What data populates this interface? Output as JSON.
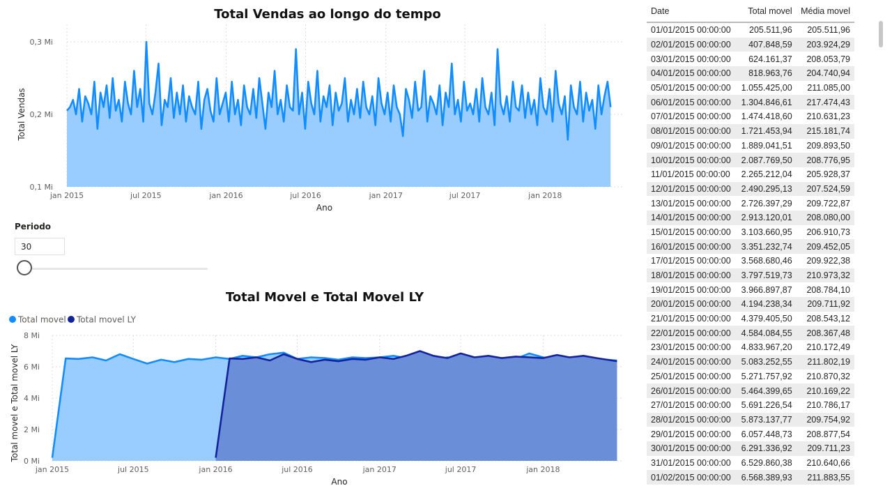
{
  "chart_data": [
    {
      "type": "area",
      "title": "Total Vendas ao longo do tempo",
      "xlabel": "Ano",
      "ylabel": "Total Vendas",
      "x_ticks": [
        "jan 2015",
        "jul 2015",
        "jan 2016",
        "jul 2016",
        "jan 2017",
        "jul 2017",
        "jan 2018"
      ],
      "y_ticks": [
        "0,1 Mi",
        "0,2 Mi",
        "0,3 Mi"
      ],
      "ylim": [
        0.1,
        0.3
      ],
      "xlim": [
        "2015-01-01",
        "2018-06-30"
      ],
      "grid": true,
      "series": [
        {
          "x_start": "2015-01-01",
          "step_weeks": 1,
          "values": [
            0.205,
            0.21,
            0.22,
            0.2,
            0.235,
            0.19,
            0.225,
            0.215,
            0.2,
            0.245,
            0.18,
            0.23,
            0.21,
            0.24,
            0.195,
            0.25,
            0.205,
            0.22,
            0.19,
            0.245,
            0.215,
            0.2,
            0.26,
            0.21,
            0.235,
            0.19,
            0.3,
            0.215,
            0.2,
            0.23,
            0.27,
            0.185,
            0.22,
            0.21,
            0.25,
            0.195,
            0.23,
            0.2,
            0.24,
            0.19,
            0.225,
            0.21,
            0.2,
            0.245,
            0.18,
            0.22,
            0.235,
            0.205,
            0.19,
            0.25,
            0.2,
            0.215,
            0.23,
            0.19,
            0.245,
            0.2,
            0.22,
            0.185,
            0.24,
            0.21,
            0.2,
            0.235,
            0.195,
            0.25,
            0.215,
            0.18,
            0.23,
            0.21,
            0.26,
            0.2,
            0.22,
            0.19,
            0.24,
            0.21,
            0.205,
            0.29,
            0.2,
            0.23,
            0.18,
            0.245,
            0.215,
            0.2,
            0.26,
            0.19,
            0.225,
            0.21,
            0.24,
            0.185,
            0.23,
            0.205,
            0.215,
            0.25,
            0.19,
            0.22,
            0.2,
            0.235,
            0.195,
            0.245,
            0.21,
            0.2,
            0.225,
            0.185,
            0.25,
            0.215,
            0.2,
            0.23,
            0.19,
            0.24,
            0.21,
            0.2,
            0.17,
            0.235,
            0.22,
            0.195,
            0.245,
            0.205,
            0.21,
            0.26,
            0.19,
            0.225,
            0.215,
            0.2,
            0.24,
            0.185,
            0.23,
            0.21,
            0.27,
            0.2,
            0.22,
            0.19,
            0.245,
            0.205,
            0.215,
            0.2,
            0.235,
            0.19,
            0.25,
            0.21,
            0.2,
            0.23,
            0.185,
            0.29,
            0.215,
            0.2,
            0.225,
            0.19,
            0.245,
            0.21,
            0.205,
            0.24,
            0.195,
            0.23,
            0.2,
            0.22,
            0.185,
            0.25,
            0.21,
            0.2,
            0.235,
            0.19,
            0.26,
            0.215,
            0.2,
            0.225,
            0.165,
            0.24,
            0.21,
            0.2,
            0.245,
            0.19,
            0.23,
            0.205,
            0.22,
            0.18,
            0.24,
            0.2,
            0.225,
            0.245,
            0.21
          ]
        }
      ]
    },
    {
      "type": "area",
      "title": "Total Movel e Total Movel LY",
      "xlabel": "Ano",
      "ylabel": "Total movel e Total movel LY",
      "legend_position": "top-left",
      "x_ticks": [
        "jan 2015",
        "jul 2015",
        "jan 2016",
        "jul 2016",
        "jan 2017",
        "jul 2017",
        "jan 2018"
      ],
      "y_ticks": [
        "0 Mi",
        "2 Mi",
        "4 Mi",
        "6 Mi",
        "8 Mi"
      ],
      "ylim": [
        0,
        8
      ],
      "xlim": [
        "2015-01-01",
        "2018-06-30"
      ],
      "grid": true,
      "series": [
        {
          "name": "Total movel",
          "color": "#118dff",
          "fill": "#99ccff",
          "points": [
            [
              "2015-01-01",
              0.2
            ],
            [
              "2015-01-31",
              6.53
            ],
            [
              "2015-02-28",
              6.5
            ],
            [
              "2015-04-01",
              6.6
            ],
            [
              "2015-05-01",
              6.4
            ],
            [
              "2015-06-01",
              6.8
            ],
            [
              "2015-07-01",
              6.5
            ],
            [
              "2015-08-01",
              6.2
            ],
            [
              "2015-09-01",
              6.45
            ],
            [
              "2015-10-01",
              6.3
            ],
            [
              "2015-11-01",
              6.5
            ],
            [
              "2015-12-01",
              6.45
            ],
            [
              "2016-01-01",
              6.6
            ],
            [
              "2016-02-01",
              6.5
            ],
            [
              "2016-03-01",
              6.7
            ],
            [
              "2016-04-01",
              6.6
            ],
            [
              "2016-05-01",
              6.8
            ],
            [
              "2016-06-01",
              6.9
            ],
            [
              "2016-07-01",
              6.5
            ],
            [
              "2016-08-01",
              6.6
            ],
            [
              "2016-09-01",
              6.55
            ],
            [
              "2016-10-01",
              6.45
            ],
            [
              "2016-11-01",
              6.6
            ],
            [
              "2016-12-01",
              6.55
            ],
            [
              "2017-01-01",
              6.6
            ],
            [
              "2017-02-01",
              6.7
            ],
            [
              "2017-03-01",
              6.55
            ],
            [
              "2017-04-01",
              6.65
            ],
            [
              "2017-05-01",
              6.4
            ],
            [
              "2017-06-01",
              6.6
            ],
            [
              "2017-07-01",
              6.5
            ],
            [
              "2017-08-01",
              6.45
            ],
            [
              "2017-09-01",
              6.6
            ],
            [
              "2017-10-01",
              6.55
            ],
            [
              "2017-11-01",
              6.5
            ],
            [
              "2017-12-01",
              6.85
            ],
            [
              "2018-01-01",
              6.6
            ],
            [
              "2018-02-01",
              6.5
            ],
            [
              "2018-03-01",
              6.45
            ],
            [
              "2018-04-01",
              6.6
            ],
            [
              "2018-05-01",
              6.5
            ],
            [
              "2018-06-15",
              6.4
            ]
          ]
        },
        {
          "name": "Total movel LY",
          "color": "#12239e",
          "fill": "#6b8ed8",
          "points": [
            [
              "2016-01-01",
              0.2
            ],
            [
              "2016-02-01",
              6.53
            ],
            [
              "2016-03-01",
              6.5
            ],
            [
              "2016-04-01",
              6.6
            ],
            [
              "2016-05-01",
              6.4
            ],
            [
              "2016-06-01",
              6.8
            ],
            [
              "2016-07-01",
              6.5
            ],
            [
              "2016-08-01",
              6.3
            ],
            [
              "2016-09-01",
              6.45
            ],
            [
              "2016-10-01",
              6.35
            ],
            [
              "2016-11-01",
              6.5
            ],
            [
              "2016-12-01",
              6.45
            ],
            [
              "2017-01-01",
              6.6
            ],
            [
              "2017-02-01",
              6.5
            ],
            [
              "2017-03-01",
              6.7
            ],
            [
              "2017-04-01",
              7.0
            ],
            [
              "2017-05-01",
              6.7
            ],
            [
              "2017-06-01",
              6.55
            ],
            [
              "2017-07-01",
              6.85
            ],
            [
              "2017-08-01",
              6.6
            ],
            [
              "2017-09-01",
              6.7
            ],
            [
              "2017-10-01",
              6.55
            ],
            [
              "2017-11-01",
              6.65
            ],
            [
              "2017-12-01",
              6.6
            ],
            [
              "2018-01-01",
              6.55
            ],
            [
              "2018-02-01",
              6.75
            ],
            [
              "2018-03-01",
              6.6
            ],
            [
              "2018-04-01",
              6.7
            ],
            [
              "2018-05-01",
              6.55
            ],
            [
              "2018-06-15",
              6.35
            ]
          ]
        }
      ]
    },
    {
      "type": "table",
      "columns": [
        "Date",
        "Total movel",
        "Média movel"
      ],
      "rows": [
        [
          "01/01/2015 00:00:00",
          "205.511,96",
          "205.511,96"
        ],
        [
          "02/01/2015 00:00:00",
          "407.848,59",
          "203.924,29"
        ],
        [
          "03/01/2015 00:00:00",
          "624.161,37",
          "208.053,79"
        ],
        [
          "04/01/2015 00:00:00",
          "818.963,76",
          "204.740,94"
        ],
        [
          "05/01/2015 00:00:00",
          "1.055.425,00",
          "211.085,00"
        ],
        [
          "06/01/2015 00:00:00",
          "1.304.846,61",
          "217.474,43"
        ],
        [
          "07/01/2015 00:00:00",
          "1.474.418,60",
          "210.631,23"
        ],
        [
          "08/01/2015 00:00:00",
          "1.721.453,94",
          "215.181,74"
        ],
        [
          "09/01/2015 00:00:00",
          "1.889.041,51",
          "209.893,50"
        ],
        [
          "10/01/2015 00:00:00",
          "2.087.769,50",
          "208.776,95"
        ],
        [
          "11/01/2015 00:00:00",
          "2.265.212,04",
          "205.928,37"
        ],
        [
          "12/01/2015 00:00:00",
          "2.490.295,13",
          "207.524,59"
        ],
        [
          "13/01/2015 00:00:00",
          "2.726.397,29",
          "209.722,87"
        ],
        [
          "14/01/2015 00:00:00",
          "2.913.120,01",
          "208.080,00"
        ],
        [
          "15/01/2015 00:00:00",
          "3.103.660,95",
          "206.910,73"
        ],
        [
          "16/01/2015 00:00:00",
          "3.351.232,74",
          "209.452,05"
        ],
        [
          "17/01/2015 00:00:00",
          "3.568.680,46",
          "209.922,38"
        ],
        [
          "18/01/2015 00:00:00",
          "3.797.519,73",
          "210.973,32"
        ],
        [
          "19/01/2015 00:00:00",
          "3.966.897,87",
          "208.784,10"
        ],
        [
          "20/01/2015 00:00:00",
          "4.194.238,34",
          "209.711,92"
        ],
        [
          "21/01/2015 00:00:00",
          "4.379.405,50",
          "208.543,12"
        ],
        [
          "22/01/2015 00:00:00",
          "4.584.084,55",
          "208.367,48"
        ],
        [
          "23/01/2015 00:00:00",
          "4.833.967,20",
          "210.172,49"
        ],
        [
          "24/01/2015 00:00:00",
          "5.083.252,55",
          "211.802,19"
        ],
        [
          "25/01/2015 00:00:00",
          "5.271.757,92",
          "210.870,32"
        ],
        [
          "26/01/2015 00:00:00",
          "5.464.399,65",
          "210.169,22"
        ],
        [
          "27/01/2015 00:00:00",
          "5.691.226,54",
          "210.786,17"
        ],
        [
          "28/01/2015 00:00:00",
          "5.873.137,77",
          "209.754,92"
        ],
        [
          "29/01/2015 00:00:00",
          "6.057.448,73",
          "208.877,54"
        ],
        [
          "30/01/2015 00:00:00",
          "6.291.336,92",
          "209.711,23"
        ],
        [
          "31/01/2015 00:00:00",
          "6.529.860,38",
          "210.640,66"
        ],
        [
          "01/02/2015 00:00:00",
          "6.568.389,93",
          "211.883,55"
        ]
      ]
    }
  ],
  "slicer": {
    "title": "Periodo",
    "value": "30",
    "slider_fraction": 0
  },
  "colors": {
    "line": "#118dff",
    "area": "#99ccff",
    "grid": "#dcdcdc",
    "axis_text": "#605e5c"
  }
}
